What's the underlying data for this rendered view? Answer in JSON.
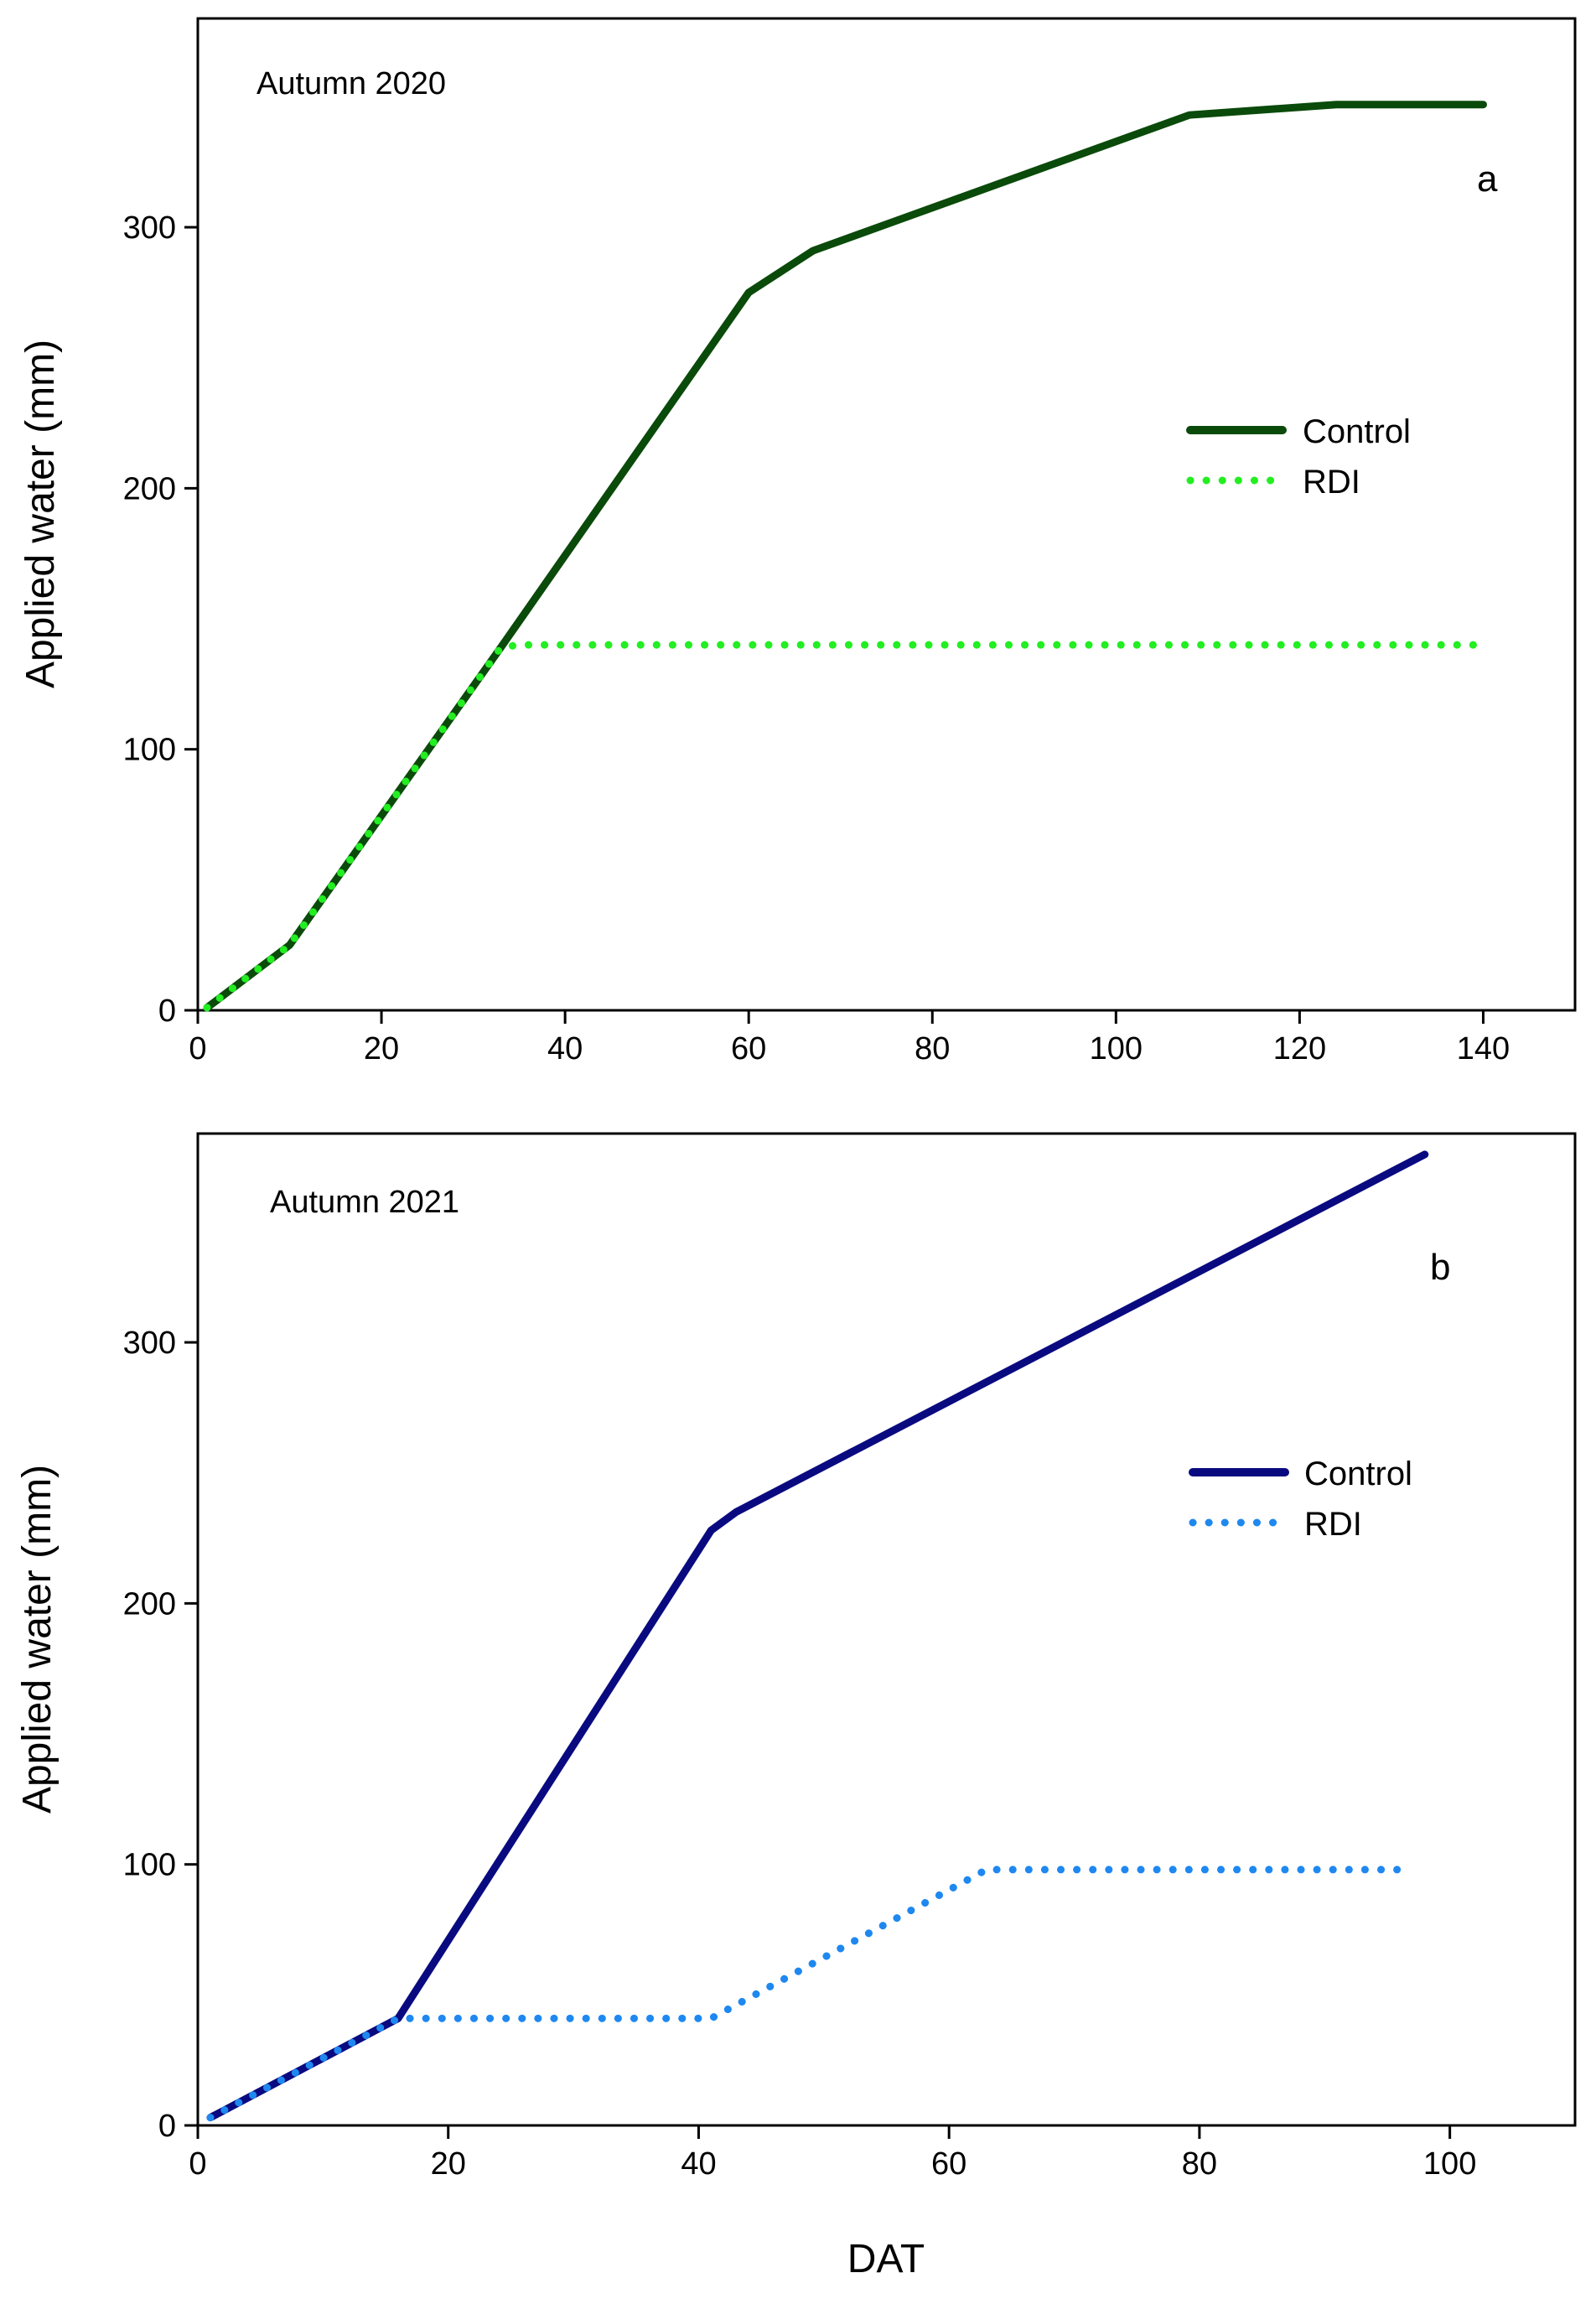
{
  "chart_data": [
    {
      "type": "line",
      "title": "Autumn 2020",
      "panel_label": "a",
      "xlabel": "",
      "ylabel": "Applied water (mm)",
      "xlim": [
        0,
        150
      ],
      "ylim": [
        0,
        380
      ],
      "xticks": [
        0,
        20,
        40,
        60,
        80,
        100,
        120,
        140
      ],
      "yticks": [
        0,
        100,
        200,
        300
      ],
      "legend_position": "right",
      "series": [
        {
          "name": "Control",
          "style": "solid",
          "color": "#0a4a0a",
          "x": [
            1,
            10,
            33,
            60,
            67,
            108,
            124,
            140
          ],
          "y": [
            1,
            25,
            139,
            275,
            291,
            343,
            347,
            347
          ]
        },
        {
          "name": "RDI",
          "style": "dotted",
          "color": "#22ee22",
          "x": [
            1,
            10,
            33,
            35,
            139
          ],
          "y": [
            1,
            25,
            139,
            140,
            140
          ]
        }
      ]
    },
    {
      "type": "line",
      "title": "Autumn 2021",
      "panel_label": "b",
      "xlabel": "DAT",
      "ylabel": "Applied water (mm)",
      "xlim": [
        0,
        110
      ],
      "ylim": [
        0,
        380
      ],
      "xticks": [
        0,
        20,
        40,
        60,
        80,
        100
      ],
      "yticks": [
        0,
        100,
        200,
        300
      ],
      "legend_position": "right",
      "series": [
        {
          "name": "Control",
          "style": "solid",
          "color": "#0a0a80",
          "x": [
            1,
            16,
            41,
            43,
            98
          ],
          "y": [
            3,
            41,
            228,
            235,
            372
          ]
        },
        {
          "name": "RDI",
          "style": "dotted",
          "color": "#1e88f0",
          "x": [
            1,
            16,
            41,
            63,
            97
          ],
          "y": [
            3,
            41,
            41,
            98,
            98
          ]
        }
      ]
    }
  ]
}
